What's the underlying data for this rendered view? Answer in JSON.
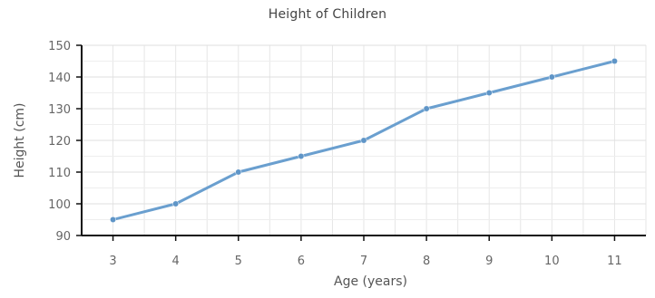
{
  "chart_data": {
    "type": "line",
    "title": "Height of Children",
    "xlabel": "Age (years)",
    "ylabel": "Height (cm)",
    "categories": [
      "3",
      "4",
      "5",
      "6",
      "7",
      "8",
      "9",
      "10",
      "11"
    ],
    "x": [
      3,
      4,
      5,
      6,
      7,
      8,
      9,
      10,
      11
    ],
    "series": [
      {
        "values": [
          95,
          100,
          110,
          115,
          120,
          130,
          135,
          140,
          145
        ]
      }
    ],
    "ylim": [
      90,
      150
    ],
    "yticks": [
      "90",
      "100",
      "110",
      "120",
      "130",
      "140",
      "150"
    ],
    "grid": true,
    "legend": "none",
    "colors": {
      "line": "#6a9fcf",
      "marker": "#5f95c7",
      "grid": "#e6e6e6",
      "axis": "#111111",
      "tick_text": "#666666"
    }
  }
}
